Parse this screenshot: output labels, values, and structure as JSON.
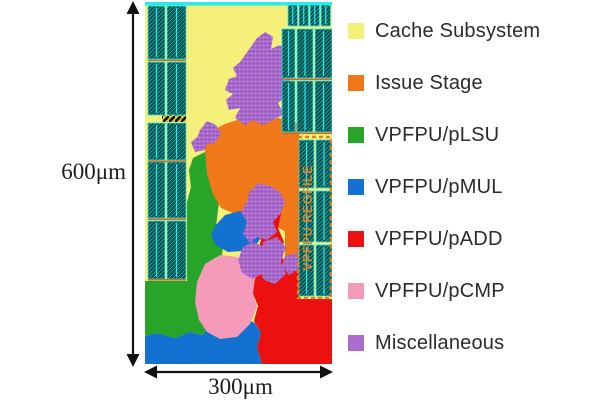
{
  "palette": {
    "cache": "#f5f07a",
    "issue": "#f07818",
    "lsu": "#28a428",
    "mul": "#1371d1",
    "add": "#ed1010",
    "cmp": "#f59ab8",
    "misc": "#ab6cce",
    "misc_dark": "#8a4bb0",
    "misc_light": "#d7a8ea",
    "sram_base": "#0b4d4b",
    "sram_hatch": "#14bdbd",
    "sram_stripe": "#2ceaea",
    "sram_divider": "#d2691e",
    "hazard_yellow": "#e8c520",
    "hazard_black": "#111111",
    "regfile_text": "#e87f1f",
    "arrow": "#111111",
    "text": "#1c1c1c"
  },
  "figure": {
    "height_label": "600μm",
    "width_label": "300μm",
    "regfile_label": "VPFPU REGFILE"
  },
  "legend": {
    "items": [
      {
        "label": "Cache Subsystem",
        "key": "cache"
      },
      {
        "label": "Issue Stage",
        "key": "issue"
      },
      {
        "label": "VPFPU/pLSU",
        "key": "lsu"
      },
      {
        "label": "VPFPU/pMUL",
        "key": "mul"
      },
      {
        "label": "VPFPU/pADD",
        "key": "add"
      },
      {
        "label": "VPFPU/pCMP",
        "key": "cmp"
      },
      {
        "label": "Miscellaneous",
        "key": "misc"
      }
    ]
  }
}
